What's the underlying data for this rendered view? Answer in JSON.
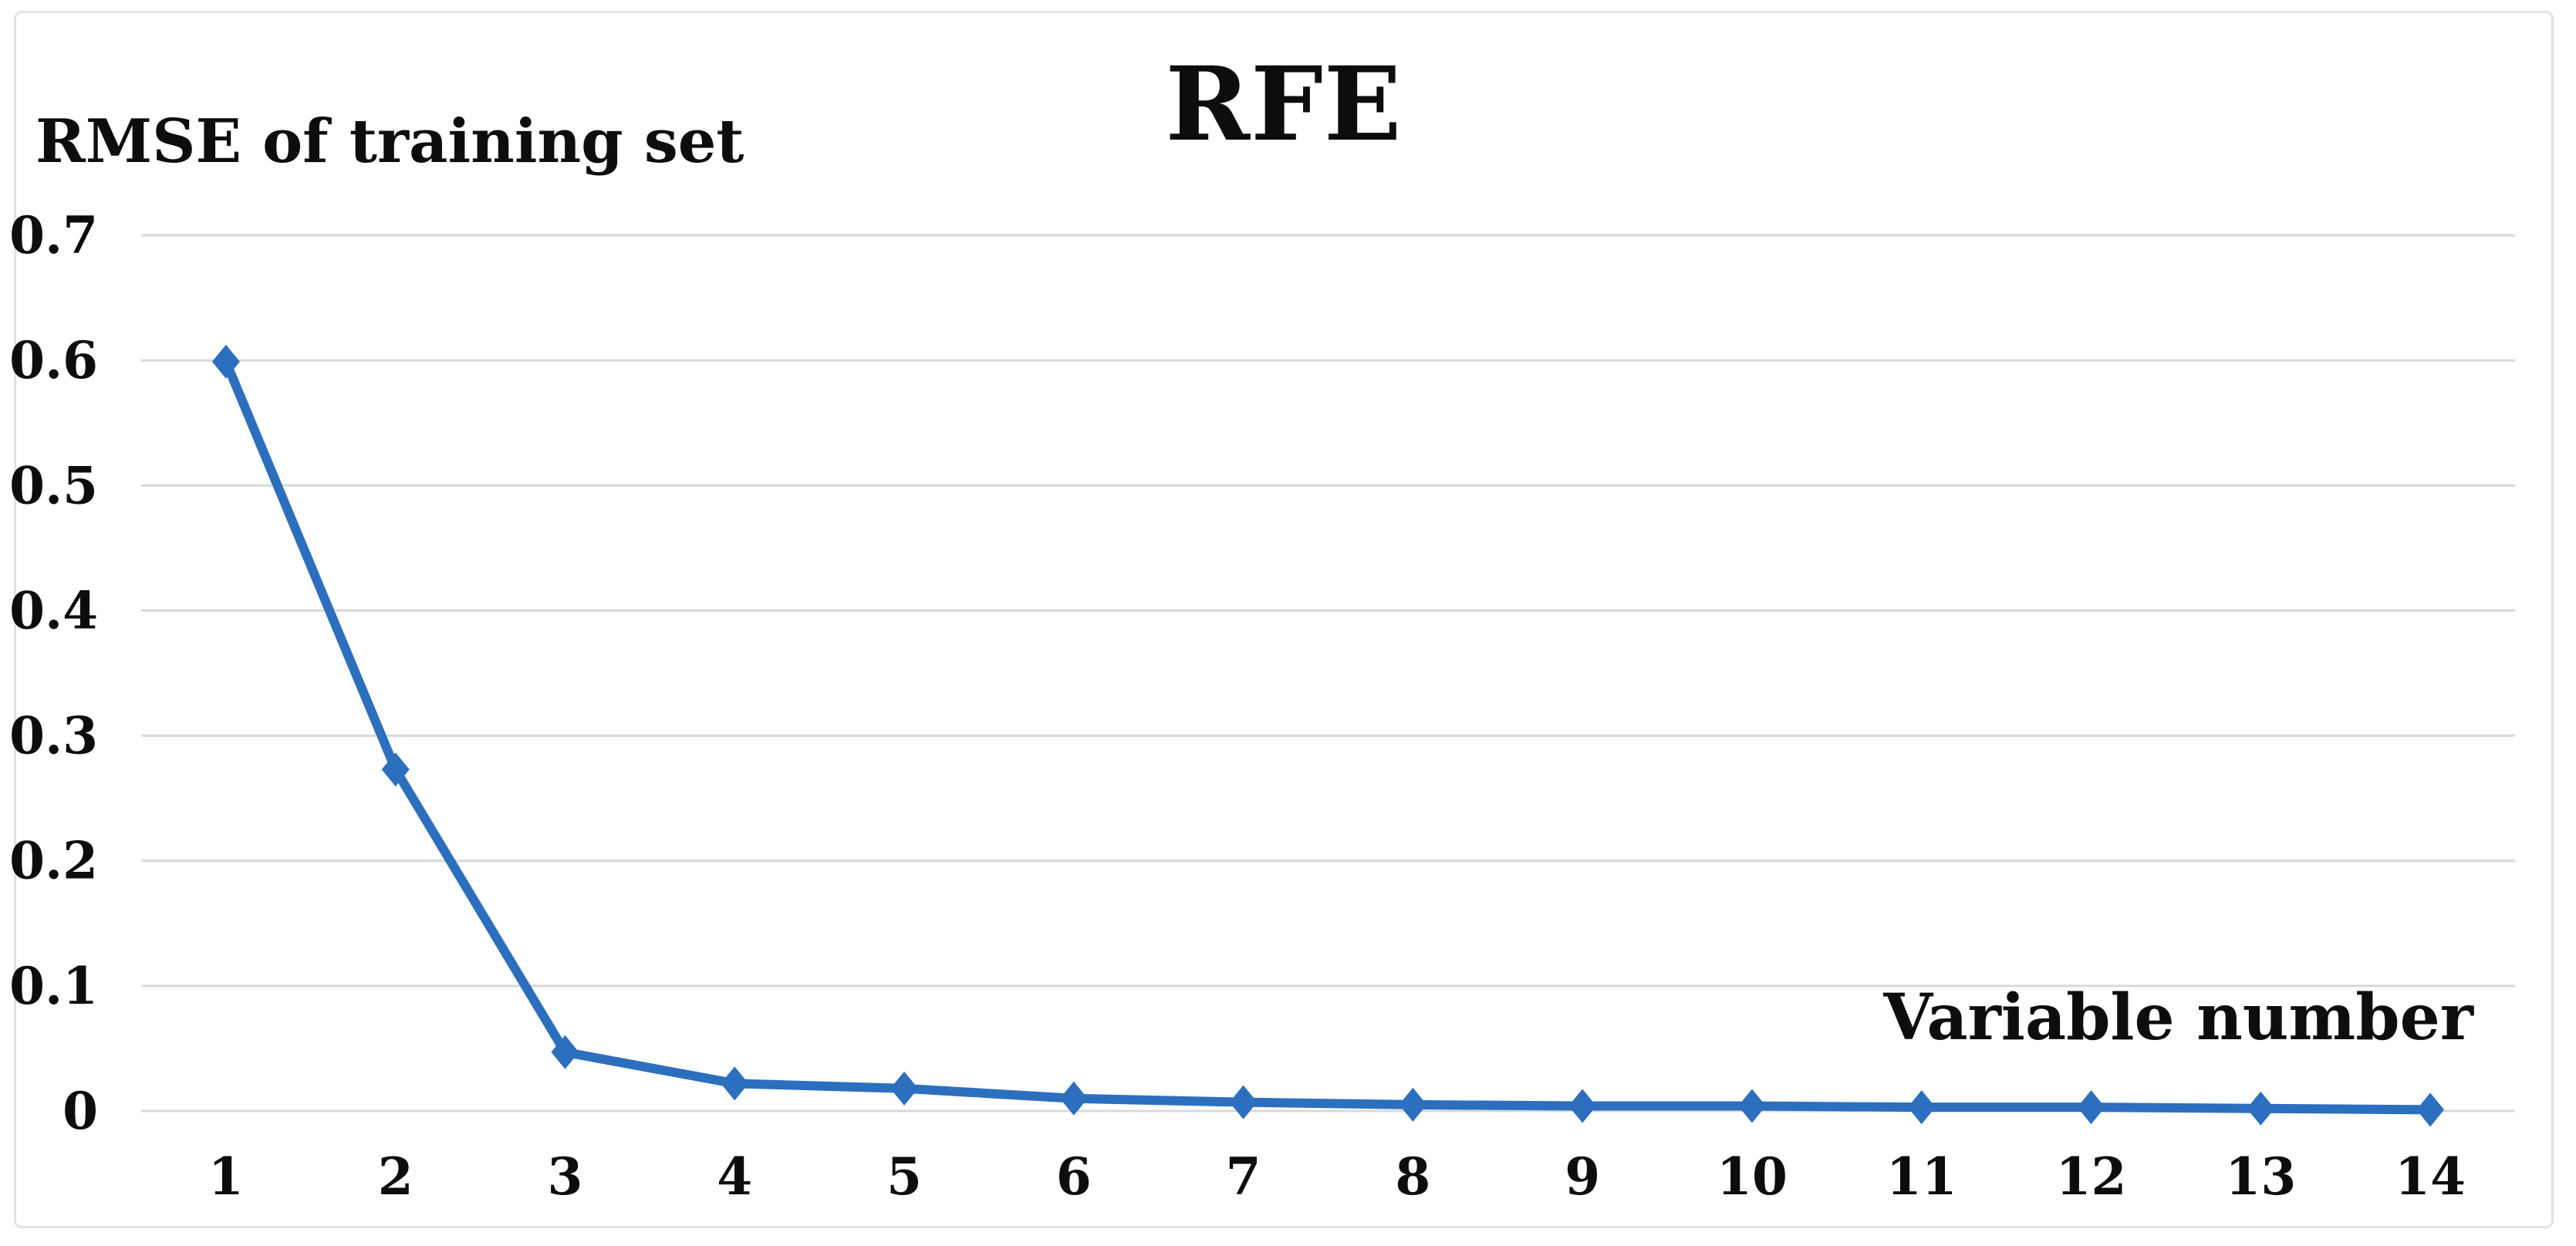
{
  "figure": {
    "title": "RFE",
    "y_axis_label": "RMSE of training set",
    "x_axis_label": "Variable number"
  },
  "chart_data": {
    "type": "line",
    "title": "RFE",
    "ylabel": "RMSE of training set",
    "xlabel": "Variable number",
    "series_name": "RMSE of training set",
    "categories": [
      "1",
      "2",
      "3",
      "4",
      "5",
      "6",
      "7",
      "8",
      "9",
      "10",
      "11",
      "12",
      "13",
      "14"
    ],
    "values": [
      0.599,
      0.273,
      0.047,
      0.022,
      0.018,
      0.01,
      0.007,
      0.005,
      0.004,
      0.004,
      0.003,
      0.003,
      0.002,
      0.001
    ],
    "yticks": [
      {
        "v": 0.7,
        "label": "0.7"
      },
      {
        "v": 0.6,
        "label": "0.6"
      },
      {
        "v": 0.5,
        "label": "0.5"
      },
      {
        "v": 0.4,
        "label": "0.4"
      },
      {
        "v": 0.3,
        "label": "0.3"
      },
      {
        "v": 0.2,
        "label": "0.2"
      },
      {
        "v": 0.1,
        "label": "0.1"
      },
      {
        "v": 0.0,
        "label": "0"
      }
    ],
    "ylim": [
      0,
      0.7
    ],
    "grid": "horizontal-only",
    "legend_position": "none",
    "marker": "diamond",
    "colors": {
      "line": "#2c6fbe",
      "marker": "#2c6fbe",
      "gridline": "#d9d9d9",
      "figure_border": "#e3e3e3",
      "text": "#0d0d0d",
      "background": "#ffffff"
    }
  }
}
